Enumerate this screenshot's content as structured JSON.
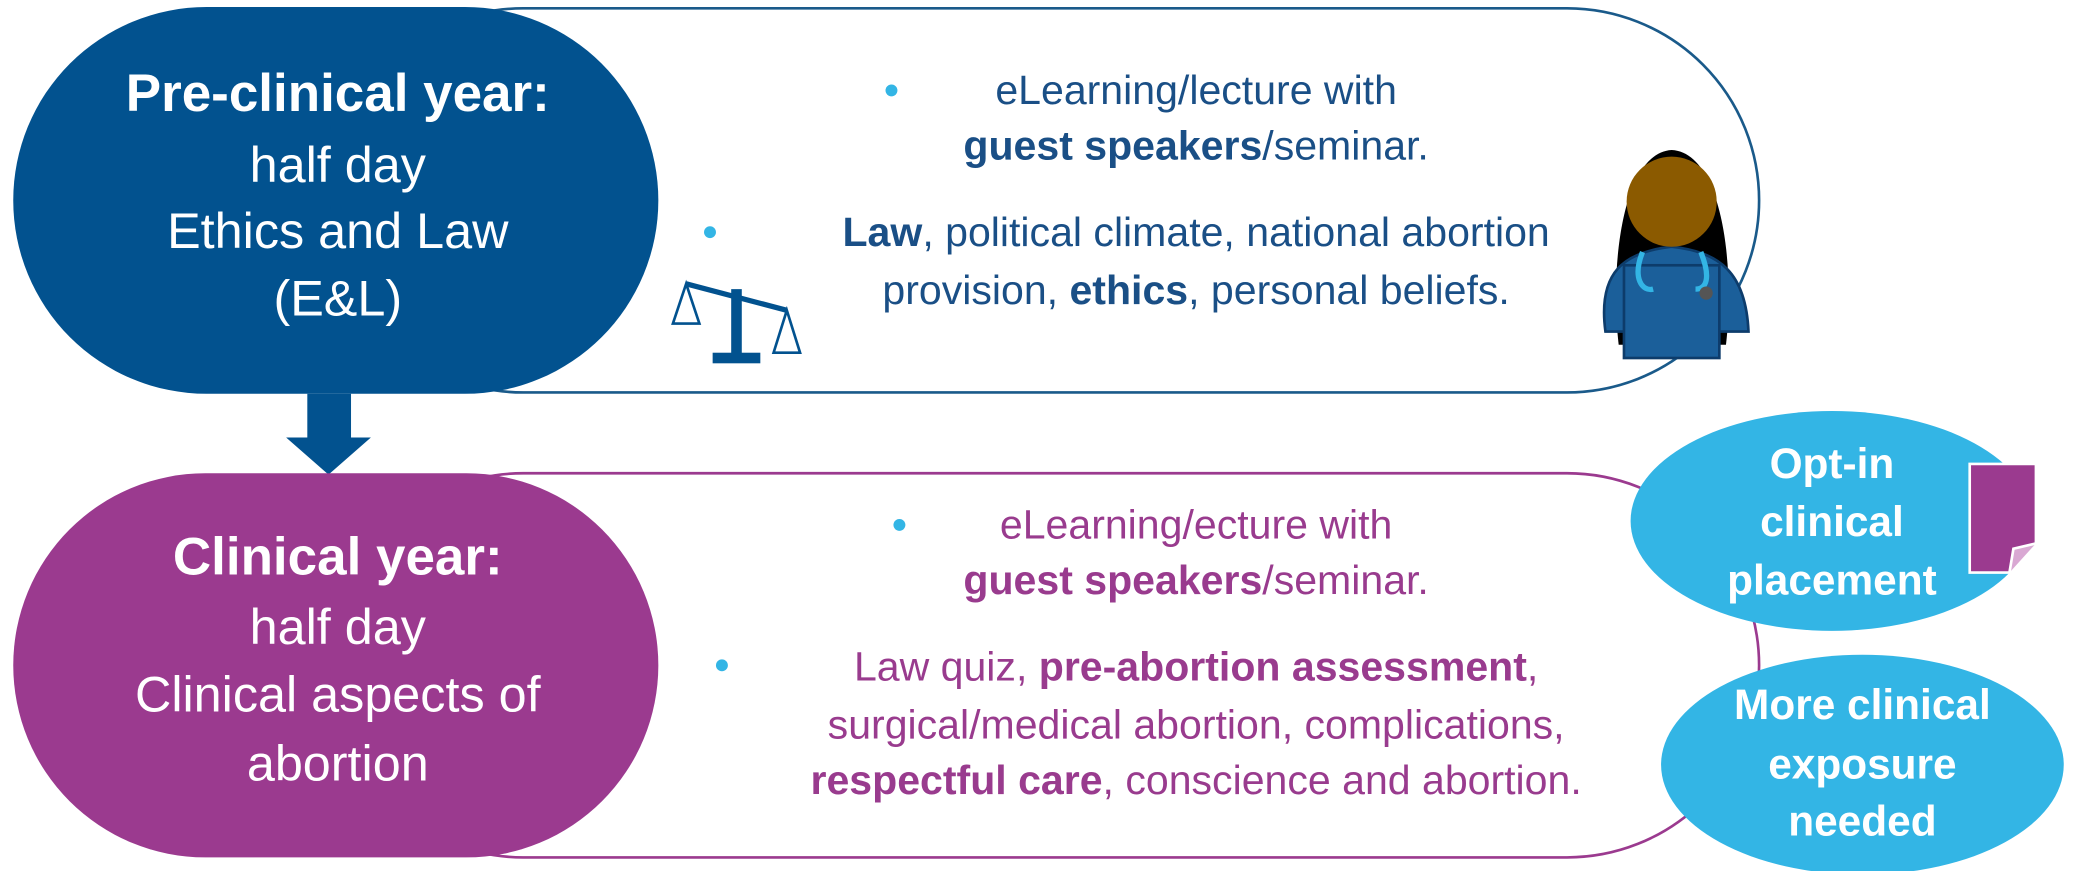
{
  "stages": [
    {
      "title": "Pre-clinical year:",
      "lines": [
        "half day",
        "Ethics and Law",
        "(E&L)"
      ],
      "bullets": [
        {
          "lines": [
            [
              {
                "text": "eLearning/lecture with"
              }
            ],
            [
              {
                "text": "guest speakers",
                "bold": true
              },
              {
                "text": "/seminar."
              }
            ]
          ]
        },
        {
          "lines": [
            [
              {
                "text": "Law",
                "bold": true
              },
              {
                "text": ", political climate, national abortion"
              }
            ],
            [
              {
                "text": "provision, "
              },
              {
                "text": "ethics",
                "bold": true
              },
              {
                "text": ", personal beliefs."
              }
            ]
          ]
        }
      ]
    },
    {
      "title": "Clinical year:",
      "lines": [
        "half day",
        "Clinical aspects of",
        "abortion"
      ],
      "bullets": [
        {
          "lines": [
            [
              {
                "text": "eLearning/ecture with"
              }
            ],
            [
              {
                "text": "guest speakers",
                "bold": true
              },
              {
                "text": "/seminar."
              }
            ]
          ]
        },
        {
          "lines": [
            [
              {
                "text": "Law quiz, "
              },
              {
                "text": "pre-abortion assessment",
                "bold": true
              },
              {
                "text": ","
              }
            ],
            [
              {
                "text": "surgical/medical abortion, complications,"
              }
            ],
            [
              {
                "text": "respectful care",
                "bold": true
              },
              {
                "text": ", conscience and abortion."
              }
            ]
          ]
        }
      ]
    }
  ],
  "outcomes": [
    {
      "lines": [
        "Opt-in",
        "clinical",
        "placement"
      ]
    },
    {
      "lines": [
        "More clinical",
        "exposure",
        "needed"
      ]
    }
  ]
}
